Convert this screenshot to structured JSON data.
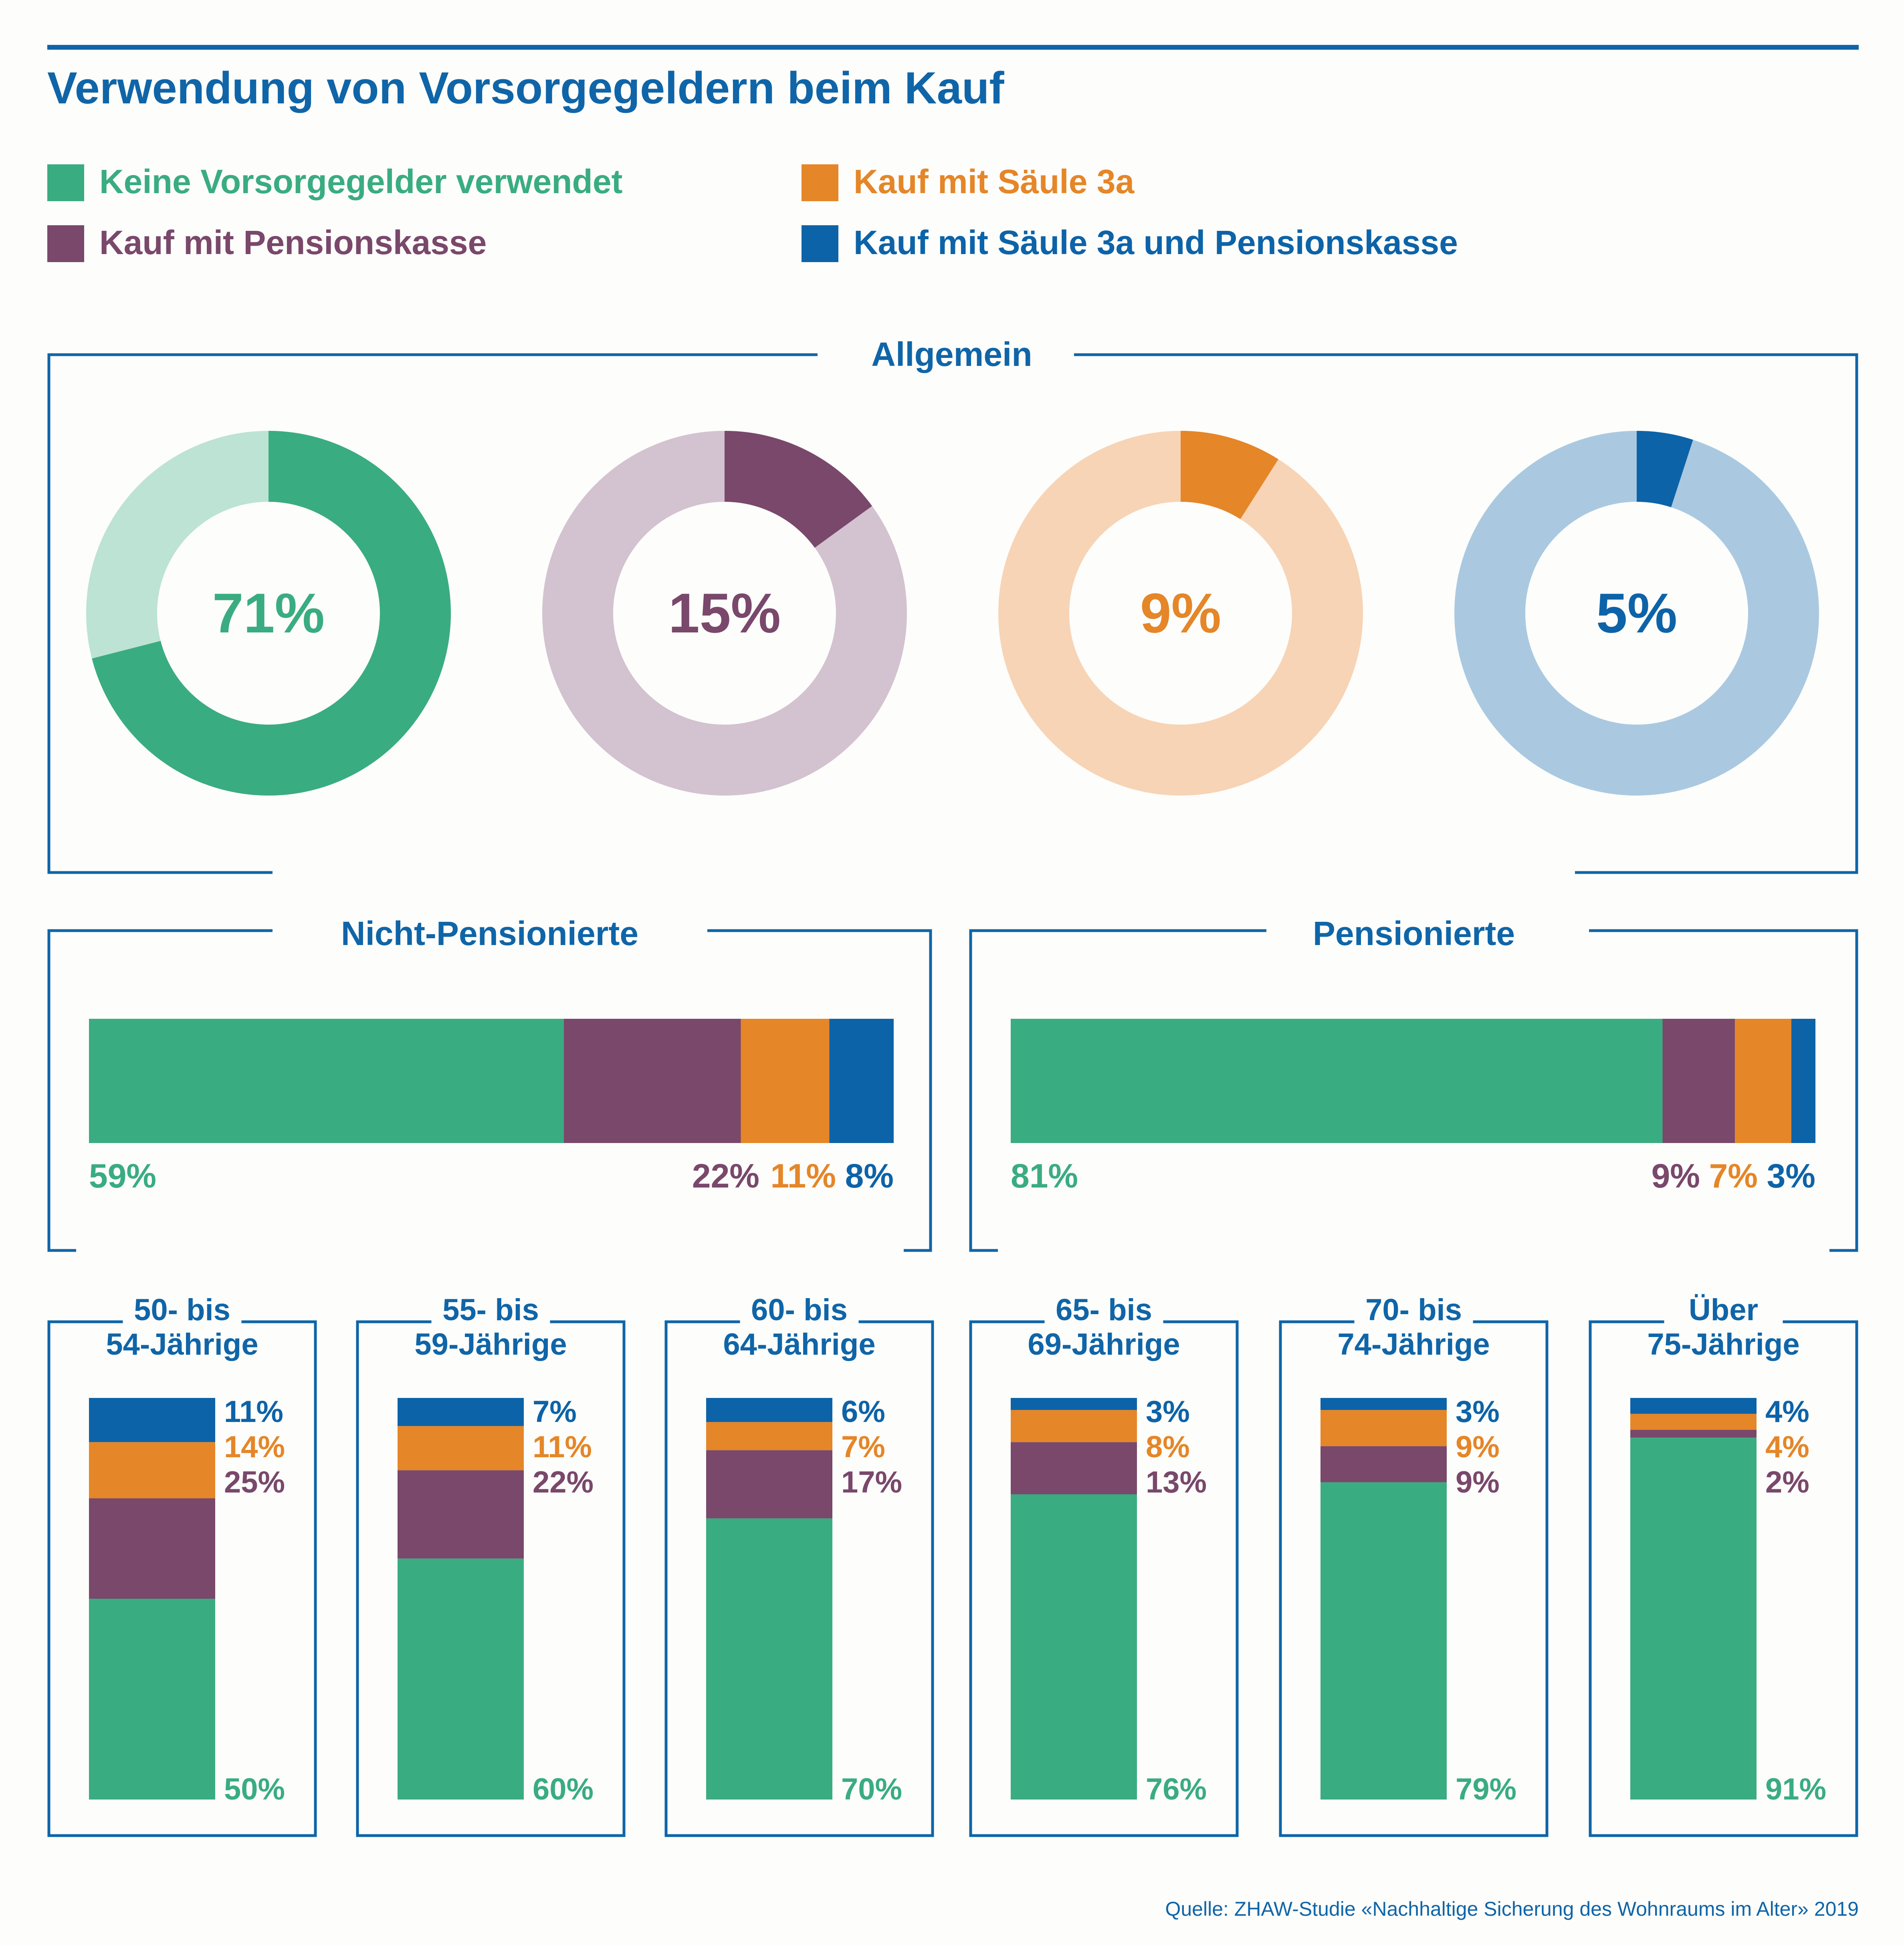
{
  "title": "Verwendung von Vorsorgegeldern beim Kauf",
  "colors": {
    "frame": "#0f65a8",
    "keine": "#3aac81",
    "pk": "#79486b",
    "s3a": "#e58628",
    "both": "#0d63a8",
    "keine_light": "#bce3d4",
    "pk_light": "#d3c2d0",
    "s3a_light": "#f7d4b5",
    "both_light": "#aac9e1"
  },
  "legend": [
    {
      "label": "Keine Vorsorgegelder verwendet",
      "color": "#3aac81"
    },
    {
      "label": "Kauf mit Säule 3a",
      "color": "#e58628"
    },
    {
      "label": "Kauf mit Pensionskasse",
      "color": "#79486b"
    },
    {
      "label": "Kauf mit Säule 3a und Pensionskasse",
      "color": "#0d63a8"
    }
  ],
  "source": "Quelle: ZHAW-Studie «Nachhaltige Sicherung des Wohnraums im Alter» 2019",
  "chart_data": [
    {
      "type": "pie",
      "title": "Allgemein",
      "style": "donut",
      "slices": [
        {
          "label": "Keine Vorsorgegelder verwendet",
          "value": 71,
          "display": "71%"
        },
        {
          "label": "Kauf mit Pensionskasse",
          "value": 15,
          "display": "15%"
        },
        {
          "label": "Kauf mit Säule 3a",
          "value": 9,
          "display": "9%"
        },
        {
          "label": "Kauf mit Säule 3a und Pensionskasse",
          "value": 5,
          "display": "5%"
        }
      ]
    },
    {
      "type": "bar",
      "orientation": "horizontal-stacked",
      "title": "Nicht-Pensionierte",
      "series": [
        {
          "name": "Keine Vorsorgegelder verwendet",
          "value": 59,
          "display": "59%"
        },
        {
          "name": "Kauf mit Pensionskasse",
          "value": 22,
          "display": "22%"
        },
        {
          "name": "Kauf mit Säule 3a",
          "value": 11,
          "display": "11%"
        },
        {
          "name": "Kauf mit Säule 3a und Pensionskasse",
          "value": 8,
          "display": "8%"
        }
      ]
    },
    {
      "type": "bar",
      "orientation": "horizontal-stacked",
      "title": "Pensionierte",
      "series": [
        {
          "name": "Keine Vorsorgegelder verwendet",
          "value": 81,
          "display": "81%"
        },
        {
          "name": "Kauf mit Pensionskasse",
          "value": 9,
          "display": "9%"
        },
        {
          "name": "Kauf mit Säule 3a",
          "value": 7,
          "display": "7%"
        },
        {
          "name": "Kauf mit Säule 3a und Pensionskasse",
          "value": 3,
          "display": "3%"
        }
      ]
    },
    {
      "type": "bar",
      "orientation": "vertical-stacked",
      "categories": [
        {
          "line1": "50- bis",
          "line2": "54-Jährige"
        },
        {
          "line1": "55- bis",
          "line2": "59-Jährige"
        },
        {
          "line1": "60- bis",
          "line2": "64-Jährige"
        },
        {
          "line1": "65- bis",
          "line2": "69-Jährige"
        },
        {
          "line1": "70- bis",
          "line2": "74-Jährige"
        },
        {
          "line1": "Über",
          "line2": "75-Jährige"
        }
      ],
      "series": [
        {
          "name": "Keine Vorsorgegelder verwendet",
          "values": [
            50,
            60,
            70,
            76,
            79,
            91
          ],
          "display": [
            "50%",
            "60%",
            "70%",
            "76%",
            "79%",
            "91%"
          ]
        },
        {
          "name": "Kauf mit Pensionskasse",
          "values": [
            25,
            22,
            17,
            13,
            9,
            2
          ],
          "display": [
            "25%",
            "22%",
            "17%",
            "13%",
            "9%",
            "2%"
          ]
        },
        {
          "name": "Kauf mit Säule 3a",
          "values": [
            14,
            11,
            7,
            8,
            9,
            4
          ],
          "display": [
            "14%",
            "11%",
            "7%",
            "8%",
            "9%",
            "4%"
          ]
        },
        {
          "name": "Kauf mit Säule 3a und Pensionskasse",
          "values": [
            11,
            7,
            6,
            3,
            3,
            4
          ],
          "display": [
            "11%",
            "7%",
            "6%",
            "3%",
            "3%",
            "4%"
          ]
        }
      ]
    }
  ]
}
